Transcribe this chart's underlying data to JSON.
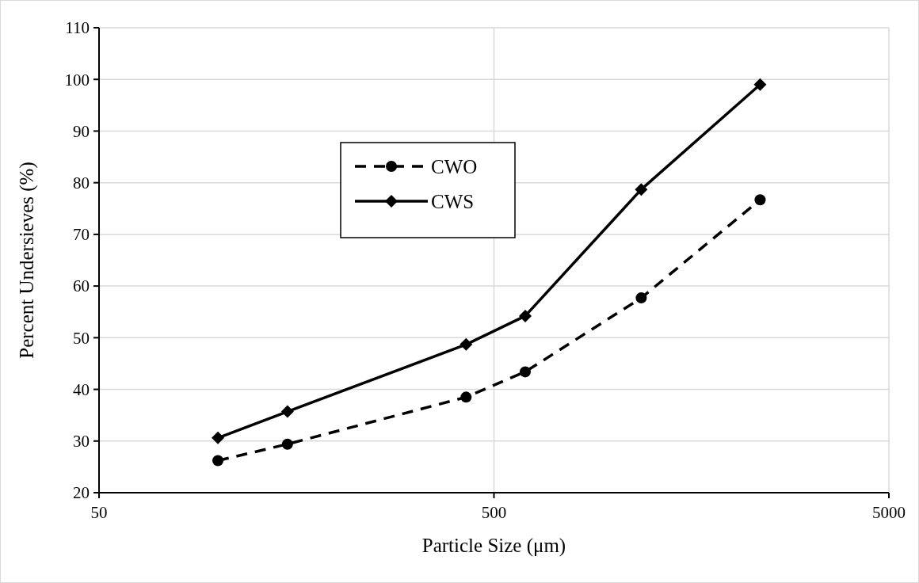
{
  "chart_data": {
    "type": "line",
    "xlabel": "Particle Size (μm)",
    "ylabel": "Percent Undersieves (%)",
    "log": "x",
    "xlim": [
      50,
      5000
    ],
    "xticks": [
      50,
      500,
      5000
    ],
    "ylim": [
      20,
      110
    ],
    "yticks": [
      20,
      30,
      40,
      50,
      60,
      70,
      80,
      90,
      100,
      110
    ],
    "grid": true,
    "legend": "top left",
    "x": [
      100,
      150,
      425,
      600,
      1180,
      2360
    ],
    "series": [
      {
        "name": "CWO",
        "color": "#000000",
        "values": [
          26.2,
          29.4,
          38.5,
          43.4,
          57.7,
          76.7
        ],
        "marker": "circle",
        "line_style": "dashed"
      },
      {
        "name": "CWS",
        "color": "#000000",
        "values": [
          30.6,
          35.7,
          48.7,
          54.2,
          78.7,
          99.0
        ],
        "marker": "diamond",
        "line_style": "solid"
      }
    ]
  }
}
